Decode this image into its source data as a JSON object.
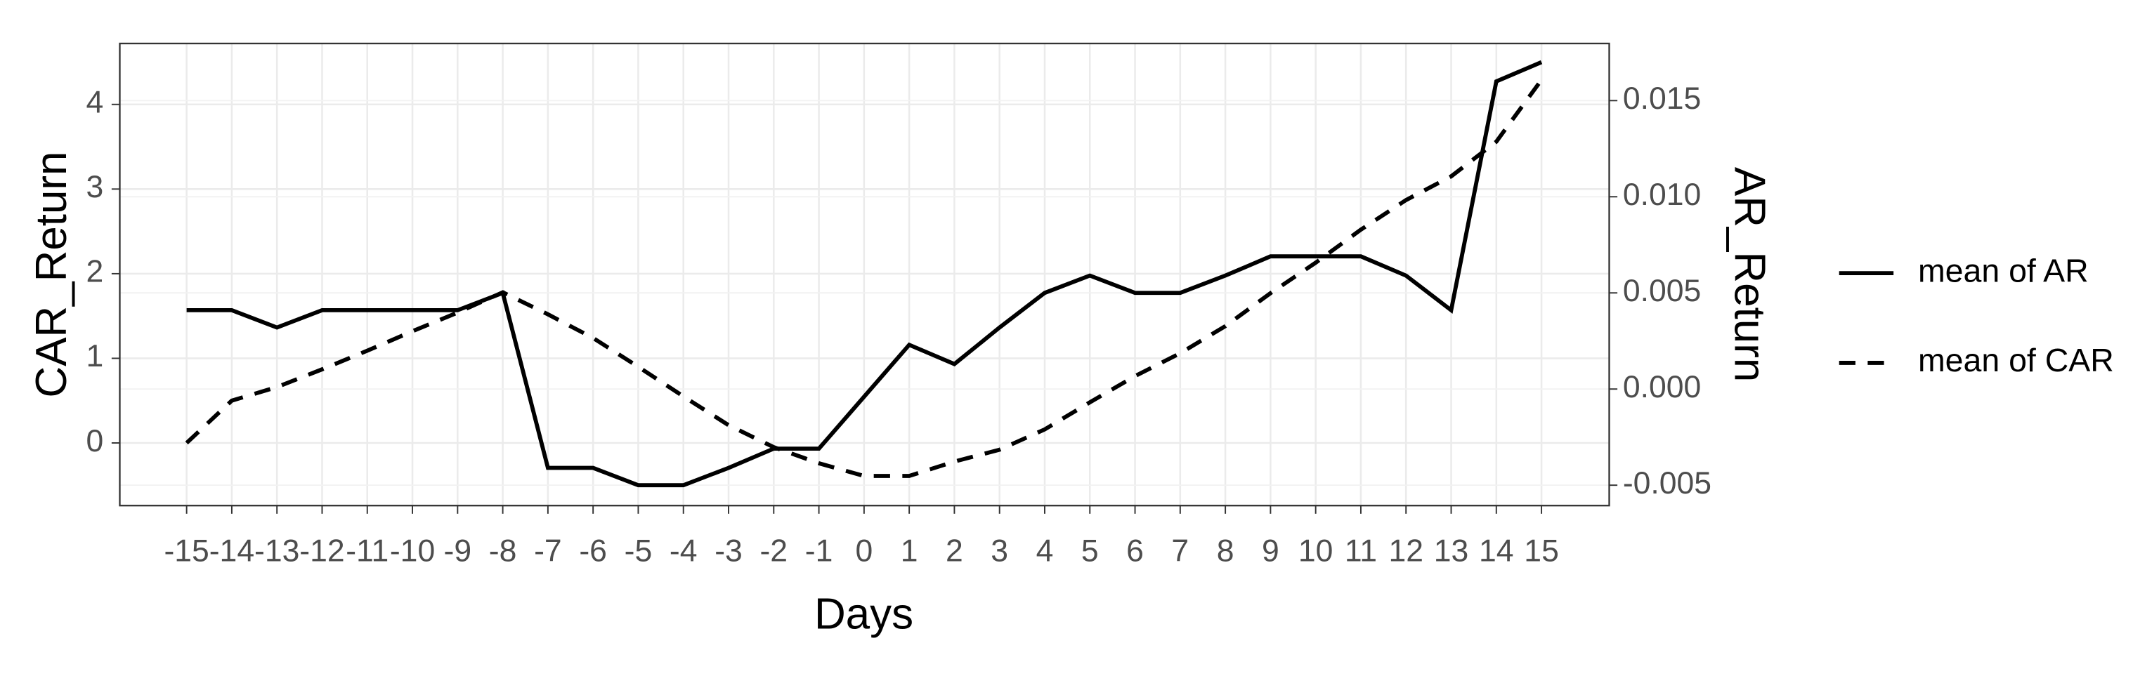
{
  "chart_data": {
    "type": "line",
    "x_label": "Days",
    "y_label": "CAR_Return",
    "y2_label": "AR_Return",
    "x": [
      -15,
      -14,
      -13,
      -12,
      -11,
      -10,
      -9,
      -8,
      -7,
      -6,
      -5,
      -4,
      -3,
      -2,
      -1,
      0,
      1,
      2,
      3,
      4,
      5,
      6,
      7,
      8,
      9,
      10,
      11,
      12,
      13,
      14,
      15
    ],
    "xlim": [
      -16.48,
      16.5
    ],
    "xticks": [
      -15,
      -14,
      -13,
      -12,
      -11,
      -10,
      -9,
      -8,
      -7,
      -6,
      -5,
      -4,
      -3,
      -2,
      -1,
      0,
      1,
      2,
      3,
      4,
      5,
      6,
      7,
      8,
      9,
      10,
      11,
      12,
      13,
      14,
      15
    ],
    "ylim": [
      -0.74,
      4.72
    ],
    "yticks": [
      0,
      1,
      2,
      3,
      4
    ],
    "y2lim": [
      -0.00606,
      0.01797
    ],
    "y2ticks": [
      {
        "value": -0.005,
        "label": "-0.005"
      },
      {
        "value": 0,
        "label": "0.000"
      },
      0.005,
      {
        "value": 0.01,
        "label": "0.010"
      },
      0.015
    ],
    "grid": true,
    "series": [
      {
        "name": "mean of AR",
        "color": "#000000",
        "dash": "solid",
        "axis": "y2",
        "values": [
          0.0041,
          0.0041,
          0.0032,
          0.0041,
          0.0041,
          0.0041,
          0.0041,
          0.005,
          -0.0041,
          -0.0041,
          -0.005,
          -0.005,
          -0.0041,
          -0.0031,
          -0.0031,
          -0.0004,
          0.0023,
          0.0013,
          0.0032,
          0.005,
          0.0059,
          0.005,
          0.005,
          0.0059,
          0.0069,
          0.0069,
          0.0069,
          0.0059,
          0.0041,
          0.016,
          0.017
        ]
      },
      {
        "name": "mean of CAR",
        "color": "#000000",
        "dash": "dashed",
        "values": [
          0,
          0.5,
          0.66,
          0.87,
          1.09,
          1.32,
          1.54,
          1.78,
          1.52,
          1.24,
          0.9,
          0.55,
          0.21,
          -0.05,
          -0.24,
          -0.39,
          -0.39,
          -0.22,
          -0.08,
          0.16,
          0.48,
          0.79,
          1.06,
          1.38,
          1.77,
          2.13,
          2.52,
          2.87,
          3.15,
          3.56,
          4.29
        ]
      }
    ]
  }
}
